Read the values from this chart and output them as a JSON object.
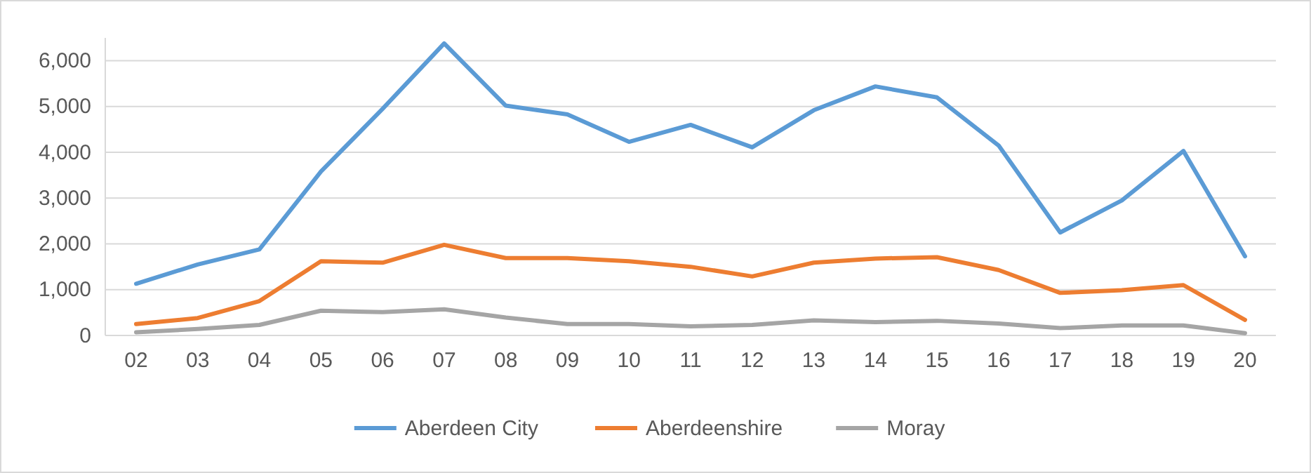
{
  "chart_data": {
    "type": "line",
    "categories": [
      "02",
      "03",
      "04",
      "05",
      "06",
      "07",
      "08",
      "09",
      "10",
      "11",
      "12",
      "13",
      "14",
      "15",
      "16",
      "17",
      "18",
      "19",
      "20"
    ],
    "series": [
      {
        "name": "Aberdeen City",
        "color": "#5b9bd5",
        "values": [
          1130,
          1550,
          1880,
          3580,
          4950,
          6380,
          5020,
          4830,
          4230,
          4600,
          4110,
          4920,
          5440,
          5200,
          4150,
          2250,
          2950,
          4030,
          1730
        ]
      },
      {
        "name": "Aberdeenshire",
        "color": "#ed7d31",
        "values": [
          250,
          380,
          750,
          1620,
          1590,
          1980,
          1690,
          1690,
          1620,
          1500,
          1290,
          1590,
          1680,
          1710,
          1430,
          930,
          990,
          1100,
          340
        ]
      },
      {
        "name": "Moray",
        "color": "#a5a5a5",
        "values": [
          70,
          140,
          230,
          540,
          510,
          570,
          390,
          250,
          250,
          200,
          230,
          330,
          290,
          320,
          260,
          160,
          220,
          220,
          50
        ]
      }
    ],
    "ylim": [
      0,
      6500
    ],
    "yticks": [
      {
        "value": 0,
        "label": "0"
      },
      {
        "value": 1000,
        "label": "1,000"
      },
      {
        "value": 2000,
        "label": "2,000"
      },
      {
        "value": 3000,
        "label": "3,000"
      },
      {
        "value": 4000,
        "label": "4,000"
      },
      {
        "value": 5000,
        "label": "5,000"
      },
      {
        "value": 6000,
        "label": "6,000"
      }
    ],
    "grid": "y",
    "legend": "bottom",
    "marker": "none",
    "line_style": "solid"
  }
}
